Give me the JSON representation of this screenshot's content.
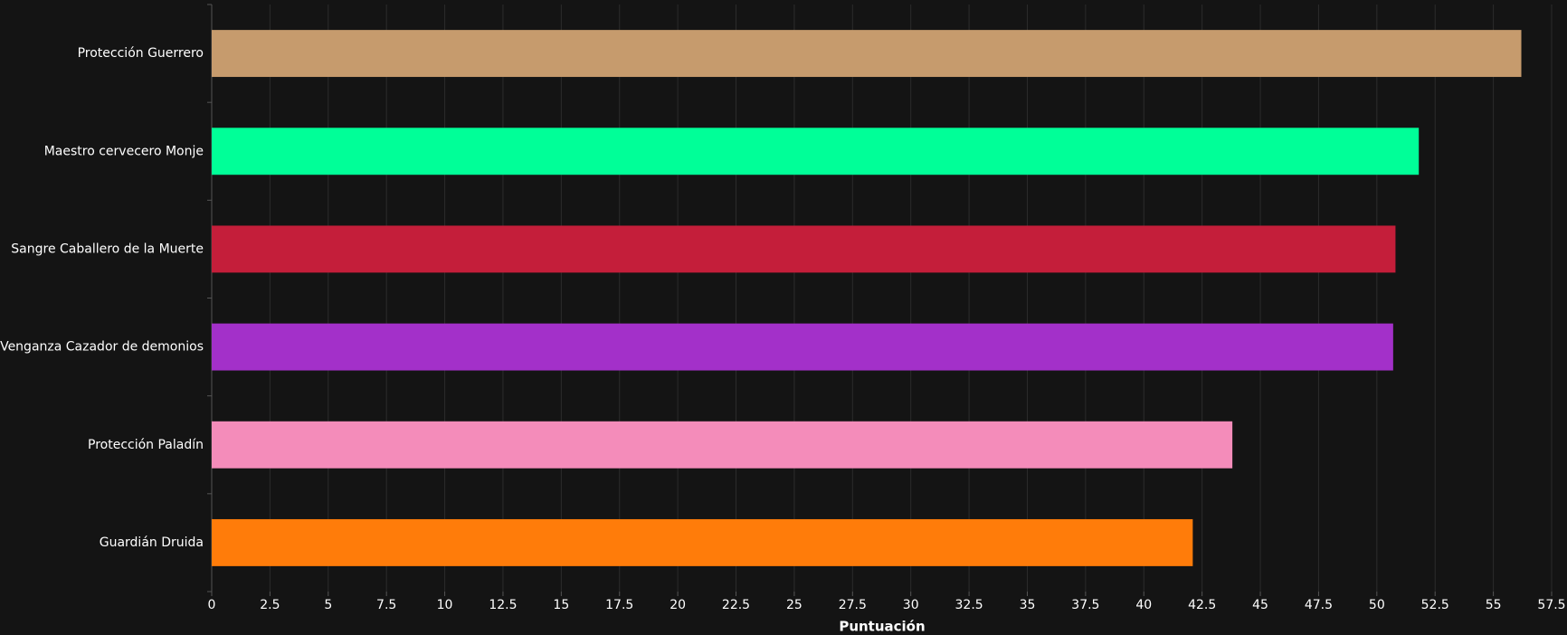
{
  "chart_data": {
    "type": "barh",
    "x_label": "Puntuación",
    "categories": [
      "Protección Guerrero",
      "Maestro cervecero Monje",
      "Sangre Caballero de la Muerte",
      "Venganza Cazador de demonios",
      "Protección Paladín",
      "Guardián Druida"
    ],
    "values": [
      56.2,
      51.8,
      50.8,
      50.7,
      43.8,
      42.1
    ],
    "colors": [
      "#c69b6d",
      "#00ff98",
      "#c41e3a",
      "#a330c9",
      "#f48cba",
      "#ff7c0a"
    ],
    "xlim": [
      0,
      57.5
    ],
    "xticks": [
      0,
      2.5,
      5,
      7.5,
      10,
      12.5,
      15,
      17.5,
      20,
      22.5,
      25,
      27.5,
      30,
      32.5,
      35,
      37.5,
      40,
      42.5,
      45,
      47.5,
      50,
      52.5,
      55,
      57.5
    ],
    "grid": true
  }
}
